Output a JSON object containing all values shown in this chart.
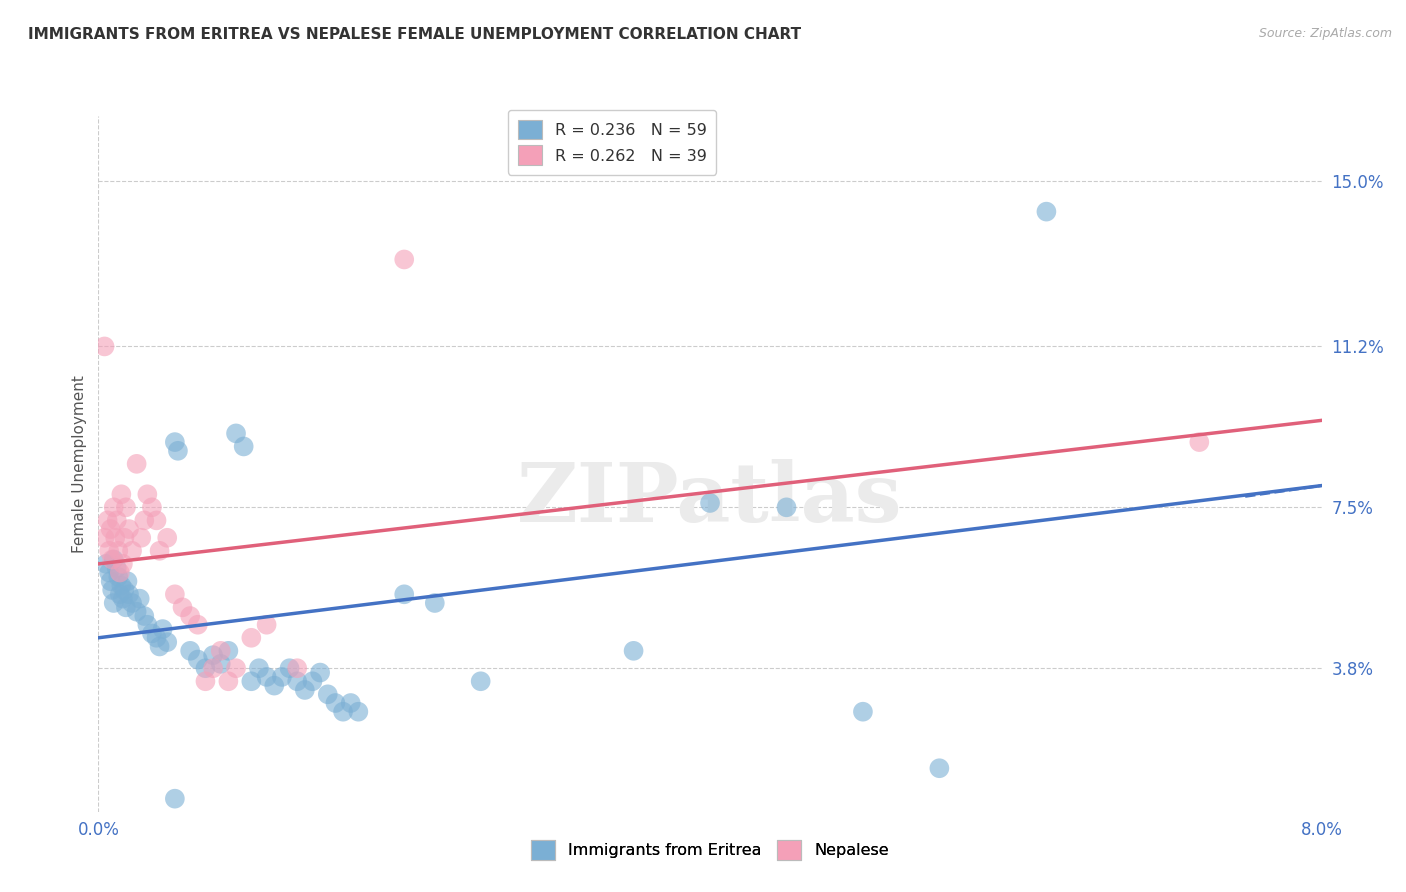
{
  "title": "IMMIGRANTS FROM ERITREA VS NEPALESE FEMALE UNEMPLOYMENT CORRELATION CHART",
  "source": "Source: ZipAtlas.com",
  "ylabel": "Female Unemployment",
  "y_tick_labels": [
    "3.8%",
    "7.5%",
    "11.2%",
    "15.0%"
  ],
  "y_tick_values": [
    3.8,
    7.5,
    11.2,
    15.0
  ],
  "x_tick_labels": [
    "0.0%",
    "8.0%"
  ],
  "xmin": 0.0,
  "xmax": 8.0,
  "ymin": 0.5,
  "ymax": 16.5,
  "legend_labels_bottom": [
    "Immigrants from Eritrea",
    "Nepalese"
  ],
  "color_blue": "#7bafd4",
  "color_pink": "#f4a0b8",
  "color_line_blue": "#4472c4",
  "color_line_pink": "#e0607a",
  "color_axis_labels": "#4472c4",
  "grid_color": "#cccccc",
  "watermark_text": "ZIPatlas",
  "blue_points": [
    [
      0.05,
      6.2
    ],
    [
      0.07,
      6.0
    ],
    [
      0.08,
      5.8
    ],
    [
      0.09,
      5.6
    ],
    [
      0.1,
      6.3
    ],
    [
      0.1,
      5.3
    ],
    [
      0.12,
      6.1
    ],
    [
      0.13,
      5.9
    ],
    [
      0.14,
      5.5
    ],
    [
      0.15,
      5.7
    ],
    [
      0.16,
      5.4
    ],
    [
      0.17,
      5.6
    ],
    [
      0.18,
      5.2
    ],
    [
      0.19,
      5.8
    ],
    [
      0.2,
      5.5
    ],
    [
      0.22,
      5.3
    ],
    [
      0.25,
      5.1
    ],
    [
      0.27,
      5.4
    ],
    [
      0.3,
      5.0
    ],
    [
      0.32,
      4.8
    ],
    [
      0.35,
      4.6
    ],
    [
      0.38,
      4.5
    ],
    [
      0.4,
      4.3
    ],
    [
      0.42,
      4.7
    ],
    [
      0.45,
      4.4
    ],
    [
      0.5,
      9.0
    ],
    [
      0.52,
      8.8
    ],
    [
      0.6,
      4.2
    ],
    [
      0.65,
      4.0
    ],
    [
      0.7,
      3.8
    ],
    [
      0.75,
      4.1
    ],
    [
      0.8,
      3.9
    ],
    [
      0.85,
      4.2
    ],
    [
      0.9,
      9.2
    ],
    [
      0.95,
      8.9
    ],
    [
      1.0,
      3.5
    ],
    [
      1.05,
      3.8
    ],
    [
      1.1,
      3.6
    ],
    [
      1.15,
      3.4
    ],
    [
      1.2,
      3.6
    ],
    [
      1.25,
      3.8
    ],
    [
      1.3,
      3.5
    ],
    [
      1.35,
      3.3
    ],
    [
      1.4,
      3.5
    ],
    [
      1.45,
      3.7
    ],
    [
      1.5,
      3.2
    ],
    [
      1.55,
      3.0
    ],
    [
      1.6,
      2.8
    ],
    [
      1.65,
      3.0
    ],
    [
      1.7,
      2.8
    ],
    [
      2.0,
      5.5
    ],
    [
      2.2,
      5.3
    ],
    [
      2.5,
      3.5
    ],
    [
      3.5,
      4.2
    ],
    [
      4.0,
      7.6
    ],
    [
      4.5,
      7.5
    ],
    [
      5.0,
      2.8
    ],
    [
      5.5,
      1.5
    ],
    [
      6.2,
      14.3
    ],
    [
      0.5,
      0.8
    ]
  ],
  "pink_points": [
    [
      0.04,
      6.8
    ],
    [
      0.06,
      7.2
    ],
    [
      0.07,
      6.5
    ],
    [
      0.08,
      7.0
    ],
    [
      0.09,
      6.3
    ],
    [
      0.1,
      7.5
    ],
    [
      0.11,
      6.8
    ],
    [
      0.12,
      7.2
    ],
    [
      0.13,
      6.5
    ],
    [
      0.14,
      6.0
    ],
    [
      0.15,
      7.8
    ],
    [
      0.16,
      6.2
    ],
    [
      0.17,
      6.8
    ],
    [
      0.18,
      7.5
    ],
    [
      0.2,
      7.0
    ],
    [
      0.22,
      6.5
    ],
    [
      0.25,
      8.5
    ],
    [
      0.28,
      6.8
    ],
    [
      0.3,
      7.2
    ],
    [
      0.32,
      7.8
    ],
    [
      0.35,
      7.5
    ],
    [
      0.38,
      7.2
    ],
    [
      0.4,
      6.5
    ],
    [
      0.45,
      6.8
    ],
    [
      0.5,
      5.5
    ],
    [
      0.55,
      5.2
    ],
    [
      0.6,
      5.0
    ],
    [
      0.65,
      4.8
    ],
    [
      0.7,
      3.5
    ],
    [
      0.75,
      3.8
    ],
    [
      0.8,
      4.2
    ],
    [
      0.85,
      3.5
    ],
    [
      0.9,
      3.8
    ],
    [
      1.0,
      4.5
    ],
    [
      1.1,
      4.8
    ],
    [
      1.3,
      3.8
    ],
    [
      2.0,
      13.2
    ],
    [
      7.2,
      9.0
    ],
    [
      0.04,
      11.2
    ]
  ],
  "blue_line": [
    0.0,
    4.5,
    8.0,
    8.0
  ],
  "pink_line": [
    0.0,
    6.2,
    8.0,
    9.5
  ]
}
